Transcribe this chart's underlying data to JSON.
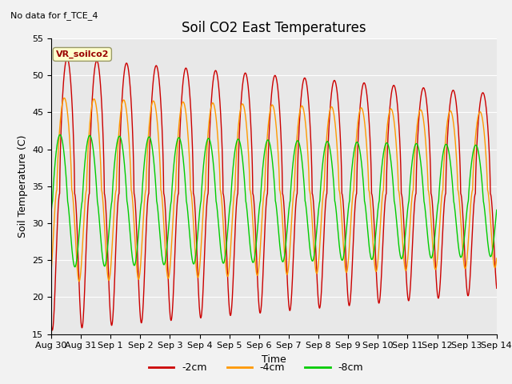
{
  "title": "Soil CO2 East Temperatures",
  "subtitle": "No data for f_TCE_4",
  "xlabel": "Time",
  "ylabel": "Soil Temperature (C)",
  "ylim": [
    15,
    55
  ],
  "xlim_days": [
    0,
    15
  ],
  "tick_labels": [
    "Aug 30",
    "Aug 31",
    "Sep 1",
    "Sep 2",
    "Sep 3",
    "Sep 4",
    "Sep 5",
    "Sep 6",
    "Sep 7",
    "Sep 8",
    "Sep 9",
    "Sep 10",
    "Sep 11",
    "Sep 12",
    "Sep 13",
    "Sep 14"
  ],
  "color_2cm": "#cc0000",
  "color_4cm": "#ff9900",
  "color_8cm": "#00cc00",
  "legend_box_label": "VR_soilco2",
  "legend_box_color": "#ffffcc",
  "legend_box_border": "#999966",
  "background_color": "#e8e8e8",
  "fig_background": "#f2f2f2",
  "title_fontsize": 12,
  "axis_label_fontsize": 9,
  "tick_fontsize": 8
}
